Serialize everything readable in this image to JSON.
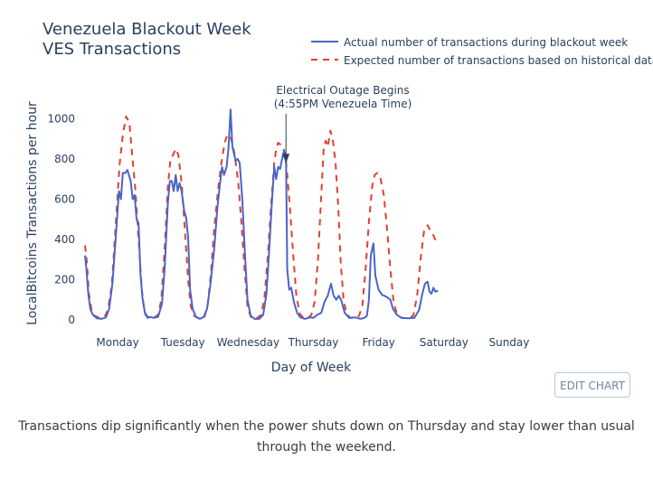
{
  "chart_data": {
    "type": "line",
    "title": "Venezuela Blackout Week",
    "subtitle": "VES Transactions",
    "xlabel": "Day of Week",
    "ylabel": "LocalBitcoins Transactions per hour",
    "xlim": [
      0,
      7
    ],
    "ylim": [
      0,
      1100
    ],
    "yticks": [
      0,
      200,
      400,
      600,
      800,
      1000
    ],
    "xticks": [
      {
        "x": 0.5,
        "label": "Monday"
      },
      {
        "x": 1.5,
        "label": "Tuesday"
      },
      {
        "x": 2.5,
        "label": "Wednesday"
      },
      {
        "x": 3.5,
        "label": "Thursday"
      },
      {
        "x": 4.5,
        "label": "Friday"
      },
      {
        "x": 5.5,
        "label": "Saturday"
      },
      {
        "x": 6.5,
        "label": "Sunday"
      }
    ],
    "legend_position": "top-right",
    "series": [
      {
        "name": "Actual number of transactions during blackout week",
        "color": "#4a64c8",
        "dash": "solid",
        "points": [
          [
            0.0,
            320
          ],
          [
            0.02,
            260
          ],
          [
            0.05,
            130
          ],
          [
            0.08,
            55
          ],
          [
            0.12,
            25
          ],
          [
            0.18,
            8
          ],
          [
            0.25,
            5
          ],
          [
            0.32,
            12
          ],
          [
            0.37,
            55
          ],
          [
            0.42,
            180
          ],
          [
            0.48,
            450
          ],
          [
            0.52,
            640
          ],
          [
            0.55,
            600
          ],
          [
            0.58,
            730
          ],
          [
            0.62,
            730
          ],
          [
            0.65,
            745
          ],
          [
            0.7,
            690
          ],
          [
            0.73,
            600
          ],
          [
            0.76,
            620
          ],
          [
            0.79,
            500
          ],
          [
            0.82,
            480
          ],
          [
            0.85,
            230
          ],
          [
            0.88,
            110
          ],
          [
            0.92,
            30
          ],
          [
            0.96,
            10
          ],
          [
            1.0,
            15
          ],
          [
            1.05,
            10
          ],
          [
            1.12,
            15
          ],
          [
            1.18,
            80
          ],
          [
            1.22,
            250
          ],
          [
            1.27,
            580
          ],
          [
            1.3,
            690
          ],
          [
            1.33,
            690
          ],
          [
            1.36,
            640
          ],
          [
            1.39,
            720
          ],
          [
            1.42,
            640
          ],
          [
            1.45,
            680
          ],
          [
            1.48,
            640
          ],
          [
            1.52,
            540
          ],
          [
            1.55,
            510
          ],
          [
            1.58,
            410
          ],
          [
            1.61,
            150
          ],
          [
            1.65,
            55
          ],
          [
            1.7,
            15
          ],
          [
            1.76,
            5
          ],
          [
            1.82,
            15
          ],
          [
            1.87,
            55
          ],
          [
            1.92,
            170
          ],
          [
            1.98,
            350
          ],
          [
            2.03,
            560
          ],
          [
            2.07,
            680
          ],
          [
            2.1,
            760
          ],
          [
            2.13,
            720
          ],
          [
            2.17,
            760
          ],
          [
            2.2,
            860
          ],
          [
            2.23,
            1045
          ],
          [
            2.26,
            860
          ],
          [
            2.28,
            830
          ],
          [
            2.31,
            790
          ],
          [
            2.34,
            800
          ],
          [
            2.37,
            780
          ],
          [
            2.41,
            600
          ],
          [
            2.45,
            330
          ],
          [
            2.49,
            100
          ],
          [
            2.54,
            20
          ],
          [
            2.6,
            5
          ],
          [
            2.67,
            5
          ],
          [
            2.73,
            25
          ],
          [
            2.78,
            130
          ],
          [
            2.82,
            330
          ],
          [
            2.86,
            560
          ],
          [
            2.9,
            760
          ],
          [
            2.93,
            700
          ],
          [
            2.96,
            760
          ],
          [
            2.99,
            750
          ],
          [
            3.02,
            800
          ],
          [
            3.05,
            840
          ],
          [
            3.08,
            820
          ],
          [
            3.1,
            250
          ],
          [
            3.13,
            150
          ],
          [
            3.16,
            160
          ],
          [
            3.2,
            90
          ],
          [
            3.25,
            35
          ],
          [
            3.3,
            12
          ],
          [
            3.37,
            5
          ],
          [
            3.45,
            12
          ],
          [
            3.5,
            10
          ],
          [
            3.56,
            25
          ],
          [
            3.62,
            35
          ],
          [
            3.67,
            90
          ],
          [
            3.72,
            120
          ],
          [
            3.77,
            180
          ],
          [
            3.81,
            120
          ],
          [
            3.85,
            100
          ],
          [
            3.89,
            120
          ],
          [
            3.93,
            95
          ],
          [
            3.98,
            35
          ],
          [
            4.05,
            10
          ],
          [
            4.15,
            12
          ],
          [
            4.22,
            5
          ],
          [
            4.28,
            10
          ],
          [
            4.32,
            20
          ],
          [
            4.35,
            95
          ],
          [
            4.38,
            320
          ],
          [
            4.42,
            380
          ],
          [
            4.45,
            220
          ],
          [
            4.5,
            150
          ],
          [
            4.55,
            125
          ],
          [
            4.62,
            115
          ],
          [
            4.68,
            100
          ],
          [
            4.72,
            55
          ],
          [
            4.78,
            25
          ],
          [
            4.85,
            10
          ],
          [
            4.95,
            8
          ],
          [
            5.05,
            10
          ],
          [
            5.12,
            50
          ],
          [
            5.17,
            130
          ],
          [
            5.21,
            180
          ],
          [
            5.25,
            190
          ],
          [
            5.28,
            140
          ],
          [
            5.31,
            130
          ],
          [
            5.34,
            160
          ],
          [
            5.37,
            140
          ],
          [
            5.41,
            145
          ]
        ]
      },
      {
        "name": "Expected number of transactions based on historical data",
        "color": "#e0412e",
        "dash": "dashed",
        "points": [
          [
            0.0,
            370
          ],
          [
            0.03,
            280
          ],
          [
            0.06,
            130
          ],
          [
            0.1,
            50
          ],
          [
            0.15,
            20
          ],
          [
            0.22,
            10
          ],
          [
            0.3,
            15
          ],
          [
            0.35,
            50
          ],
          [
            0.41,
            170
          ],
          [
            0.47,
            470
          ],
          [
            0.53,
            770
          ],
          [
            0.58,
            920
          ],
          [
            0.63,
            1010
          ],
          [
            0.68,
            980
          ],
          [
            0.72,
            830
          ],
          [
            0.77,
            650
          ],
          [
            0.82,
            400
          ],
          [
            0.87,
            150
          ],
          [
            0.91,
            40
          ],
          [
            0.96,
            15
          ],
          [
            1.05,
            10
          ],
          [
            1.12,
            25
          ],
          [
            1.17,
            100
          ],
          [
            1.22,
            350
          ],
          [
            1.27,
            660
          ],
          [
            1.31,
            800
          ],
          [
            1.35,
            820
          ],
          [
            1.39,
            850
          ],
          [
            1.43,
            820
          ],
          [
            1.48,
            680
          ],
          [
            1.53,
            450
          ],
          [
            1.58,
            200
          ],
          [
            1.62,
            70
          ],
          [
            1.67,
            20
          ],
          [
            1.75,
            8
          ],
          [
            1.83,
            15
          ],
          [
            1.88,
            70
          ],
          [
            1.93,
            230
          ],
          [
            1.98,
            450
          ],
          [
            2.04,
            650
          ],
          [
            2.09,
            780
          ],
          [
            2.14,
            880
          ],
          [
            2.18,
            920
          ],
          [
            2.23,
            910
          ],
          [
            2.29,
            830
          ],
          [
            2.35,
            680
          ],
          [
            2.4,
            470
          ],
          [
            2.45,
            230
          ],
          [
            2.49,
            70
          ],
          [
            2.54,
            15
          ],
          [
            2.62,
            5
          ],
          [
            2.7,
            25
          ],
          [
            2.75,
            110
          ],
          [
            2.8,
            310
          ],
          [
            2.85,
            560
          ],
          [
            2.9,
            780
          ],
          [
            2.93,
            850
          ],
          [
            2.96,
            880
          ],
          [
            3.0,
            870
          ],
          [
            3.04,
            860
          ],
          [
            3.09,
            760
          ],
          [
            3.14,
            560
          ],
          [
            3.19,
            330
          ],
          [
            3.24,
            120
          ],
          [
            3.29,
            30
          ],
          [
            3.35,
            10
          ],
          [
            3.42,
            10
          ],
          [
            3.47,
            25
          ],
          [
            3.52,
            90
          ],
          [
            3.57,
            300
          ],
          [
            3.62,
            620
          ],
          [
            3.66,
            860
          ],
          [
            3.69,
            890
          ],
          [
            3.72,
            860
          ],
          [
            3.76,
            940
          ],
          [
            3.8,
            890
          ],
          [
            3.84,
            780
          ],
          [
            3.88,
            570
          ],
          [
            3.92,
            280
          ],
          [
            3.96,
            110
          ],
          [
            4.0,
            40
          ],
          [
            4.06,
            10
          ],
          [
            4.14,
            10
          ],
          [
            4.2,
            20
          ],
          [
            4.25,
            70
          ],
          [
            4.3,
            250
          ],
          [
            4.35,
            480
          ],
          [
            4.4,
            660
          ],
          [
            4.44,
            720
          ],
          [
            4.48,
            730
          ],
          [
            4.53,
            700
          ],
          [
            4.58,
            620
          ],
          [
            4.63,
            450
          ],
          [
            4.68,
            250
          ],
          [
            4.73,
            90
          ],
          [
            4.78,
            30
          ],
          [
            4.85,
            10
          ],
          [
            4.95,
            8
          ],
          [
            5.03,
            20
          ],
          [
            5.09,
            120
          ],
          [
            5.15,
            320
          ],
          [
            5.2,
            450
          ],
          [
            5.25,
            470
          ],
          [
            5.3,
            440
          ],
          [
            5.34,
            420
          ],
          [
            5.38,
            390
          ],
          [
            5.41,
            380
          ]
        ]
      }
    ],
    "annotation": {
      "text_lines": [
        "Electrical Outage Begins",
        "(4:55PM Venezuela Time)"
      ],
      "x": 3.08,
      "y": 780
    }
  },
  "edit_button": {
    "label": "EDIT CHART"
  },
  "caption": "Transactions dip significantly when the power shuts down on Thursday and stay lower than usual through the weekend."
}
